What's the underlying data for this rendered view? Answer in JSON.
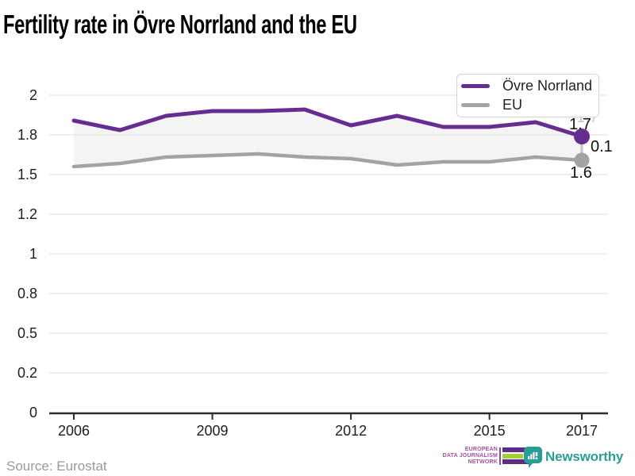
{
  "title": "Fertility rate in Övre Norrland and the EU",
  "legend": {
    "items": [
      {
        "label": "Övre Norrland",
        "color": "#662d91"
      },
      {
        "label": "EU",
        "color": "#a3a3a3"
      }
    ]
  },
  "chart_data": {
    "type": "line",
    "title": "Fertility rate in Övre Norrland and the EU",
    "x": [
      2006,
      2007,
      2008,
      2009,
      2010,
      2011,
      2012,
      2013,
      2014,
      2015,
      2016,
      2017
    ],
    "series": [
      {
        "name": "Övre Norrland",
        "color": "#662d91",
        "values": [
          1.84,
          1.78,
          1.87,
          1.9,
          1.9,
          1.91,
          1.81,
          1.87,
          1.8,
          1.8,
          1.83,
          1.74
        ]
      },
      {
        "name": "EU",
        "color": "#a3a3a3",
        "values": [
          1.55,
          1.57,
          1.61,
          1.62,
          1.63,
          1.61,
          1.6,
          1.56,
          1.58,
          1.58,
          1.61,
          1.59
        ]
      }
    ],
    "ylim": [
      0,
      2
    ],
    "y_ticks": [
      {
        "label": "0",
        "value": 0
      },
      {
        "label": "0.2",
        "value": 0.25
      },
      {
        "label": "0.5",
        "value": 0.5
      },
      {
        "label": "0.8",
        "value": 0.75
      },
      {
        "label": "1",
        "value": 1
      },
      {
        "label": "1.2",
        "value": 1.25
      },
      {
        "label": "1.5",
        "value": 1.5
      },
      {
        "label": "1.8",
        "value": 1.75
      },
      {
        "label": "2",
        "value": 2
      }
    ],
    "x_ticks": [
      2006,
      2009,
      2012,
      2015,
      2017
    ],
    "end_labels": {
      "series1": "1.7",
      "difference": "0.1",
      "series2": "1.6",
      "ghost": "1.7"
    },
    "grid": "horizontal",
    "legend_position": "top-right",
    "area_fill_between": true,
    "colors": {
      "area_fill": "#f4f4f4",
      "gridline": "#e8e8e8",
      "axis": "#2d2d2d",
      "tick_label": "#1d1d1d",
      "end_label": "#111111",
      "ghost_label": "#c6c6c6",
      "connector": "#c9c9c9"
    }
  },
  "footer": {
    "source": "Source: Eurostat",
    "edjn": {
      "lines": [
        "EUROPEAN",
        "DATA JOURNALISM",
        "NETWORK"
      ],
      "text_color": "#a4509e",
      "bar_colors": [
        "#5d2c87",
        "#a5cc39",
        "#5d2c87"
      ]
    },
    "newsworthy": {
      "label": "Newsworthy",
      "color": "#2a9d96"
    }
  }
}
